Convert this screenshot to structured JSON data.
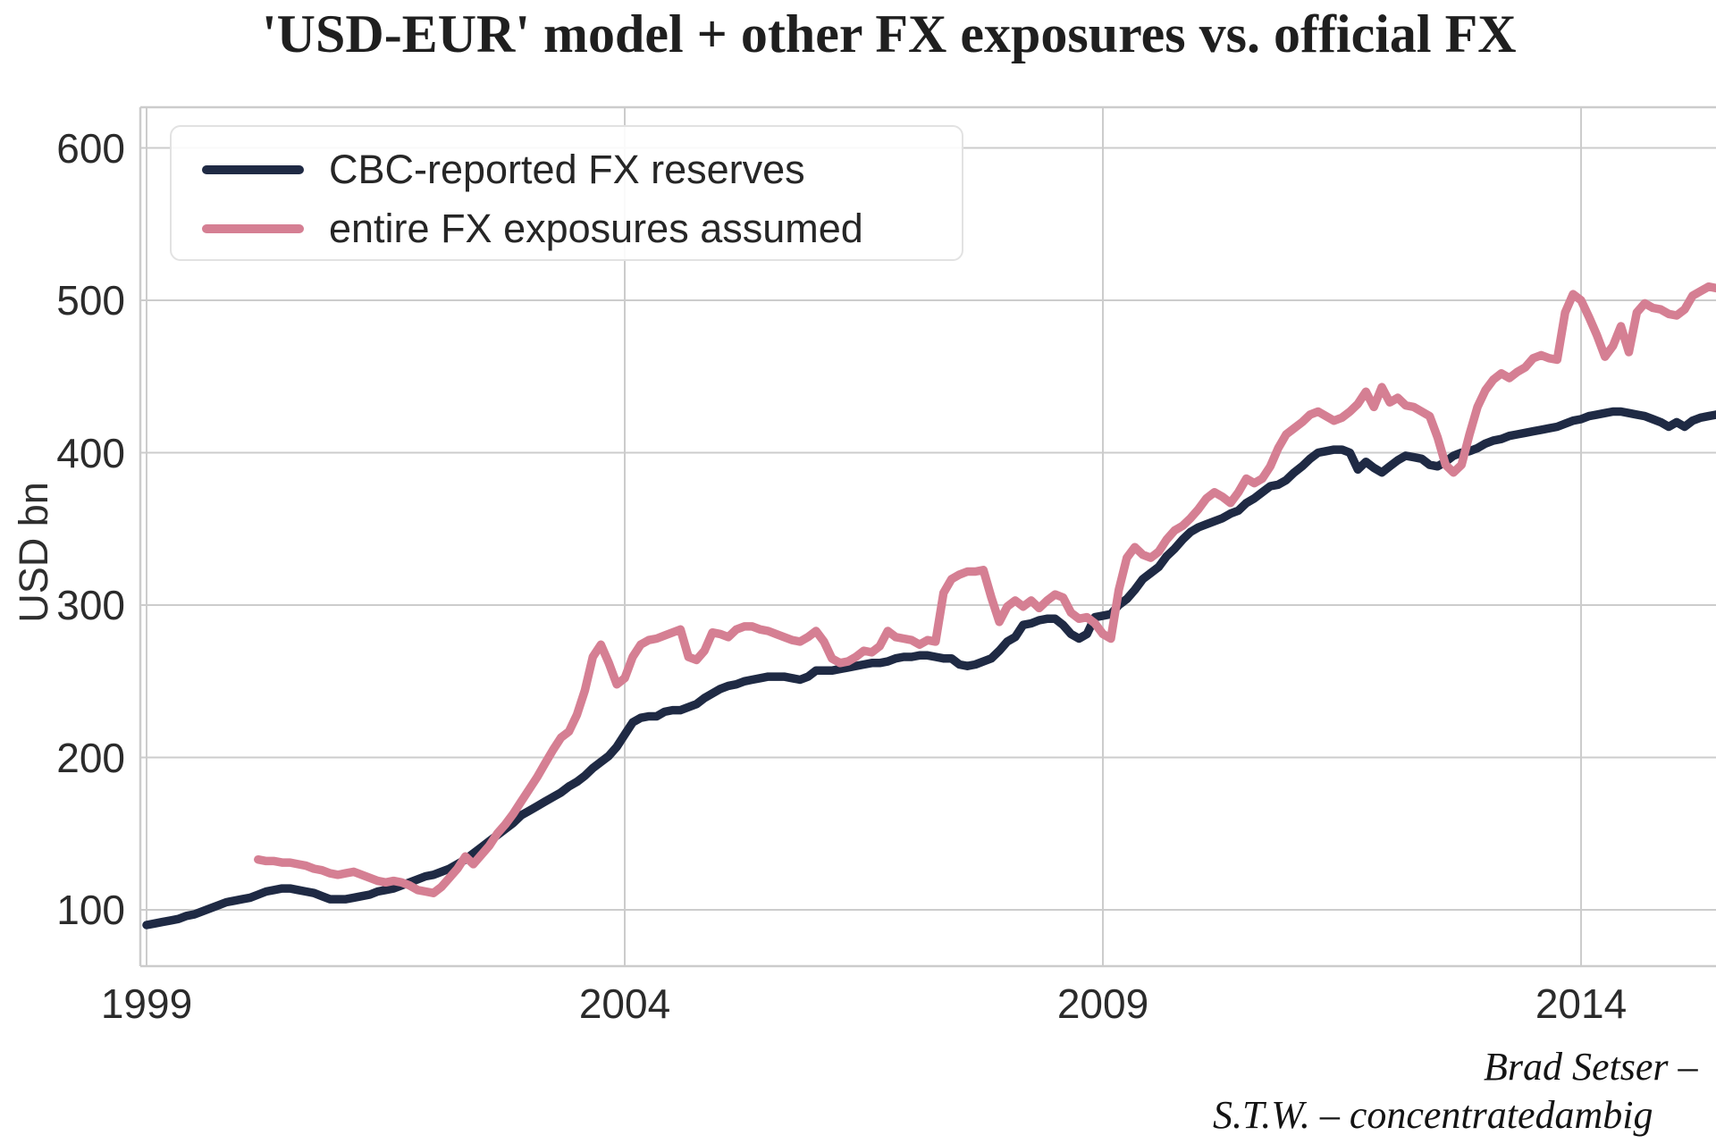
{
  "title": "'USD-EUR' model + other FX exposures vs. official FX",
  "y_axis_label": "USD bn",
  "attribution": {
    "line1": "Brad Setser –",
    "line2": "S.T.W. – concentratedambig"
  },
  "colors": {
    "navy": "#1f2a44",
    "rose": "#d57f93",
    "grid": "#cccccc",
    "text": "#2b2b2b"
  },
  "chart_data": {
    "type": "line",
    "title": "'USD-EUR' model + other FX exposures vs. official FX",
    "xlabel": "",
    "ylabel": "USD bn",
    "x_ticks": [
      1999,
      2004,
      2009,
      2014
    ],
    "y_ticks": [
      100,
      200,
      300,
      400,
      500,
      600
    ],
    "xlim": [
      1998.94,
      2015.42
    ],
    "ylim": [
      64,
      627
    ],
    "grid": true,
    "legend_position": "upper-left",
    "frequency": "monthly",
    "series": [
      {
        "name": "CBC-reported FX reserves",
        "color": "#1f2a44",
        "start_year": 1999,
        "start_month": 1,
        "values": [
          90,
          91,
          92,
          93,
          94,
          96,
          97,
          99,
          101,
          103,
          105,
          106,
          107,
          108,
          110,
          112,
          113,
          114,
          114,
          113,
          112,
          111,
          109,
          107,
          107,
          107,
          108,
          109,
          110,
          112,
          113,
          114,
          116,
          118,
          120,
          122,
          123,
          125,
          127,
          130,
          133,
          137,
          141,
          145,
          149,
          153,
          157,
          162,
          165,
          168,
          171,
          174,
          177,
          181,
          184,
          188,
          193,
          197,
          201,
          207,
          215,
          223,
          226,
          227,
          227,
          230,
          231,
          231,
          233,
          235,
          239,
          242,
          245,
          247,
          248,
          250,
          251,
          252,
          253,
          253,
          253,
          252,
          251,
          253,
          257,
          257,
          257,
          258,
          259,
          260,
          261,
          262,
          262,
          263,
          265,
          266,
          266,
          267,
          267,
          266,
          265,
          265,
          261,
          260,
          261,
          263,
          265,
          270,
          276,
          279,
          287,
          288,
          290,
          291,
          291,
          287,
          281,
          278,
          281,
          292,
          293,
          294,
          300,
          304,
          310,
          317,
          321,
          325,
          332,
          337,
          343,
          348,
          351,
          353,
          355,
          357,
          360,
          362,
          367,
          370,
          374,
          378,
          379,
          382,
          387,
          391,
          396,
          400,
          401,
          402,
          402,
          400,
          389,
          394,
          390,
          387,
          391,
          395,
          398,
          397,
          396,
          392,
          391,
          394,
          398,
          400,
          401,
          403,
          406,
          408,
          409,
          411,
          412,
          413,
          414,
          415,
          416,
          417,
          419,
          421,
          422,
          424,
          425,
          426,
          427,
          427,
          426,
          425,
          424,
          422,
          420,
          417,
          420,
          417,
          421,
          423,
          424,
          425
        ]
      },
      {
        "name": "entire FX exposures assumed",
        "color": "#d57f93",
        "start_year": 2000,
        "start_month": 3,
        "values": [
          133,
          132,
          132,
          131,
          131,
          130,
          129,
          127,
          126,
          124,
          123,
          124,
          125,
          123,
          121,
          119,
          118,
          119,
          118,
          116,
          113,
          112,
          111,
          115,
          121,
          127,
          135,
          130,
          136,
          142,
          150,
          156,
          163,
          171,
          179,
          187,
          196,
          205,
          213,
          217,
          228,
          244,
          266,
          274,
          262,
          248,
          252,
          266,
          274,
          277,
          278,
          280,
          282,
          284,
          266,
          264,
          270,
          282,
          281,
          279,
          284,
          286,
          286,
          284,
          283,
          281,
          279,
          277,
          276,
          279,
          283,
          276,
          265,
          262,
          263,
          266,
          270,
          269,
          273,
          283,
          279,
          278,
          277,
          274,
          277,
          276,
          308,
          317,
          320,
          322,
          322,
          323,
          305,
          289,
          299,
          303,
          299,
          303,
          298,
          303,
          307,
          305,
          295,
          291,
          292,
          288,
          281,
          278,
          310,
          331,
          338,
          333,
          331,
          335,
          343,
          349,
          352,
          357,
          363,
          370,
          374,
          371,
          367,
          374,
          383,
          380,
          383,
          391,
          403,
          412,
          416,
          420,
          425,
          427,
          424,
          421,
          423,
          427,
          432,
          440,
          430,
          443,
          433,
          436,
          431,
          430,
          427,
          424,
          410,
          392,
          387,
          392,
          412,
          430,
          441,
          448,
          452,
          449,
          453,
          456,
          462,
          464,
          462,
          461,
          492,
          504,
          500,
          489,
          477,
          463,
          470,
          483,
          466,
          492,
          498,
          495,
          494,
          491,
          490,
          494,
          503,
          506,
          509,
          508
        ]
      }
    ]
  }
}
